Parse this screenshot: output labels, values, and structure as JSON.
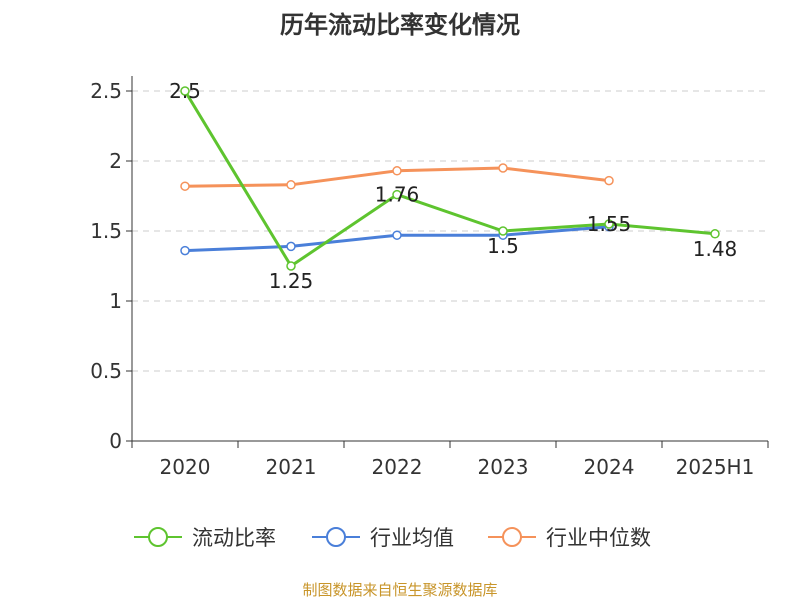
{
  "chart_data": {
    "type": "line",
    "title": "历年流动比率变化情况",
    "categories": [
      "2020",
      "2021",
      "2022",
      "2023",
      "2024",
      "2025H1"
    ],
    "ylim": [
      0,
      2.5
    ],
    "yticks": [
      "0",
      "0.5",
      "1",
      "1.5",
      "2",
      "2.5"
    ],
    "grid": true,
    "legend_position": "bottom",
    "series": [
      {
        "name": "流动比率",
        "color": "#5ec42f",
        "values": [
          2.5,
          1.25,
          1.76,
          1.5,
          1.55,
          1.48
        ],
        "labels": [
          "2.5",
          "1.25",
          "1.76",
          "1.5",
          "1.55",
          "1.48"
        ]
      },
      {
        "name": "行业均值",
        "color": "#4a7fd9",
        "values": [
          1.36,
          1.39,
          1.47,
          1.47,
          1.53,
          null
        ]
      },
      {
        "name": "行业中位数",
        "color": "#f5925a",
        "values": [
          1.82,
          1.83,
          1.93,
          1.95,
          1.86,
          null
        ]
      }
    ],
    "source": "制图数据来自恒生聚源数据库"
  }
}
